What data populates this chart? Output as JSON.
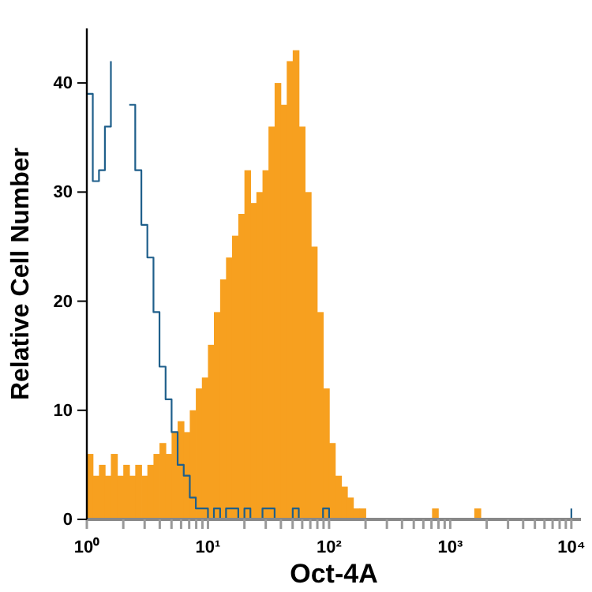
{
  "chart_data": {
    "type": "histogram",
    "xlabel": "Oct-4A",
    "ylabel": "Relative Cell Number",
    "log": "x",
    "grid": false,
    "xlim": [
      1,
      12000
    ],
    "ylim": [
      0,
      45
    ],
    "xticks": [
      {
        "value": 1,
        "label": "10⁰"
      },
      {
        "value": 2,
        "label": null
      },
      {
        "value": 3,
        "label": null
      },
      {
        "value": 4,
        "label": null
      },
      {
        "value": 5,
        "label": null
      },
      {
        "value": 6,
        "label": null
      },
      {
        "value": 7,
        "label": null
      },
      {
        "value": 8,
        "label": null
      },
      {
        "value": 9,
        "label": null
      },
      {
        "value": 10,
        "label": "10¹"
      },
      {
        "value": 20,
        "label": null
      },
      {
        "value": 30,
        "label": null
      },
      {
        "value": 40,
        "label": null
      },
      {
        "value": 50,
        "label": null
      },
      {
        "value": 60,
        "label": null
      },
      {
        "value": 70,
        "label": null
      },
      {
        "value": 80,
        "label": null
      },
      {
        "value": 90,
        "label": null
      },
      {
        "value": 100,
        "label": "10²"
      },
      {
        "value": 200,
        "label": null
      },
      {
        "value": 300,
        "label": null
      },
      {
        "value": 400,
        "label": null
      },
      {
        "value": 500,
        "label": null
      },
      {
        "value": 600,
        "label": null
      },
      {
        "value": 700,
        "label": null
      },
      {
        "value": 800,
        "label": null
      },
      {
        "value": 900,
        "label": null
      },
      {
        "value": 1000,
        "label": "10³"
      },
      {
        "value": 2000,
        "label": null
      },
      {
        "value": 3000,
        "label": null
      },
      {
        "value": 4000,
        "label": null
      },
      {
        "value": 5000,
        "label": null
      },
      {
        "value": 6000,
        "label": null
      },
      {
        "value": 7000,
        "label": null
      },
      {
        "value": 8000,
        "label": null
      },
      {
        "value": 9000,
        "label": null
      },
      {
        "value": 10000,
        "label": "10⁴"
      }
    ],
    "yticks": [
      0,
      10,
      20,
      30,
      40
    ],
    "bins": [
      1,
      1.12,
      1.26,
      1.41,
      1.58,
      1.78,
      2,
      2.24,
      2.51,
      2.82,
      3.16,
      3.55,
      3.98,
      4.47,
      5.01,
      5.62,
      6.31,
      7.08,
      7.94,
      8.91,
      10,
      11.2,
      12.6,
      14.1,
      15.8,
      17.8,
      20,
      22.4,
      25.1,
      28.2,
      31.6,
      35.5,
      39.8,
      44.7,
      50.1,
      56.2,
      63.1,
      70.8,
      79.4,
      89.1,
      100,
      112,
      126,
      141,
      158,
      178,
      200,
      224,
      251,
      282,
      316,
      355,
      398,
      447,
      501,
      562,
      631,
      708,
      794,
      891,
      1000,
      1120,
      1260,
      1410,
      1580,
      1780,
      2000,
      2240,
      2510,
      2820,
      3160,
      3550,
      3980,
      4470,
      5010,
      5620,
      6310,
      7080,
      7940,
      8910,
      10000,
      11200
    ],
    "series": [
      {
        "color": "#f7a01f",
        "values": [
          6,
          4,
          5,
          4,
          6,
          4,
          5,
          4,
          5,
          4,
          5,
          6,
          7,
          6,
          8,
          9,
          8,
          10,
          12,
          13,
          16,
          19,
          22,
          24,
          26,
          28,
          32,
          29,
          30,
          32,
          36,
          40,
          38,
          42,
          43,
          36,
          30,
          25,
          19,
          12,
          7,
          4,
          3,
          2,
          1,
          1,
          0,
          0,
          0,
          0,
          0,
          0,
          0,
          0,
          0,
          0,
          0,
          1,
          0,
          0,
          0,
          0,
          0,
          0,
          1,
          0,
          0,
          0,
          0,
          0,
          0,
          0,
          0,
          0,
          0,
          0,
          0,
          0,
          0,
          0,
          0
        ]
      },
      {
        "type": "step",
        "color": "#1f5f8b",
        "x": [
          1,
          1.12,
          1.26,
          1.41,
          1.58,
          1.78,
          2,
          2.24,
          2.51,
          2.82,
          3.16,
          3.55,
          3.98,
          4.47,
          5.01,
          5.62,
          6.31,
          7.08,
          7.94,
          8.91,
          10,
          11.2,
          12.6,
          14.1,
          15.8,
          17.8,
          20,
          22.4,
          25.1,
          28.2,
          31.6,
          35.5,
          39.8,
          44.7,
          50.1,
          56.2,
          63.1,
          70.8,
          79.4,
          89.1,
          100,
          112,
          126,
          141,
          158,
          178,
          200,
          224,
          251,
          282,
          316,
          355,
          398,
          447,
          501,
          562,
          631,
          708,
          794,
          891,
          1000,
          1120,
          1260,
          1410,
          1580,
          1780,
          2000,
          2240,
          2510,
          2820,
          3160,
          3550,
          3980,
          4470,
          5010,
          5620,
          6310,
          7080,
          7940,
          8910,
          10000
        ],
        "values": [
          39,
          31,
          32,
          36,
          42,
          null,
          null,
          38,
          32,
          27,
          24,
          19,
          14,
          11,
          8,
          5,
          4,
          2,
          1,
          1,
          0,
          1,
          0,
          1,
          1,
          0,
          1,
          0,
          0,
          1,
          1,
          0,
          0,
          0,
          1,
          0,
          0,
          0,
          0,
          1,
          0,
          0,
          0,
          0,
          0,
          0,
          0,
          0,
          0,
          0,
          0,
          0,
          0,
          0,
          0,
          0,
          0,
          0,
          0,
          0,
          0,
          0,
          0,
          0,
          0,
          0,
          0,
          0,
          0,
          0,
          0,
          0,
          0,
          0,
          0,
          0,
          0,
          0,
          0,
          0,
          1
        ]
      }
    ]
  }
}
